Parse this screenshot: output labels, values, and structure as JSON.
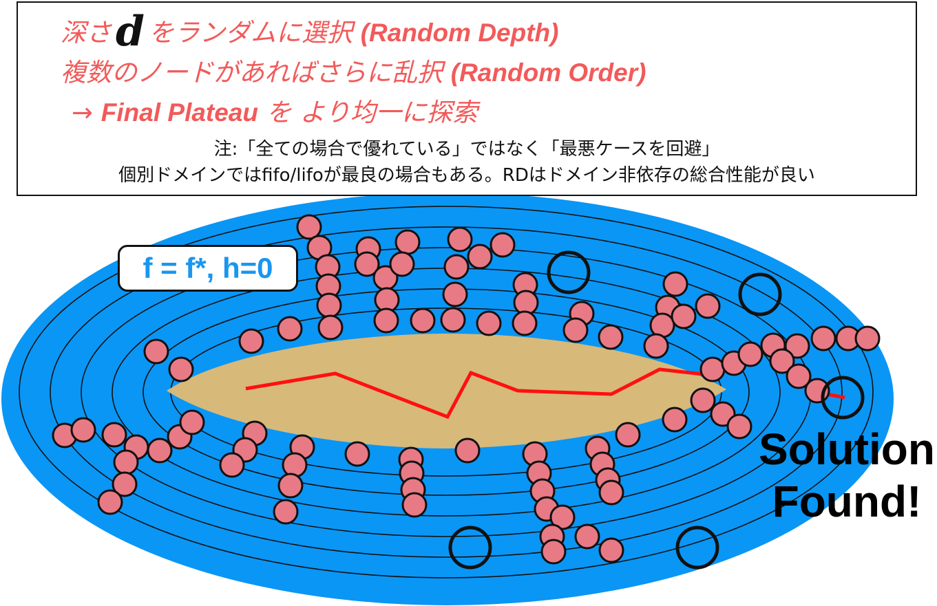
{
  "caption": {
    "line1_prefix": "深さ",
    "line1_var": "d",
    "line1_text": "をランダムに選択",
    "line1_en": "(Random Depth)",
    "line2_text": "複数のノードがあればさらに乱択",
    "line2_en": "(Random Order)",
    "line3_arrow": "→",
    "line3_en": "Final Plateau",
    "line3_text": "を より均一に探索",
    "note1": "注:「全ての場合で優れている」ではなく「最悪ケースを回避」",
    "note2": "個別ドメインではfifo/lifoが最良の場合もある。RDはドメイン非依存の総合性能が良い"
  },
  "plateau_label": "f = f*, h=0",
  "solution_label": [
    "Solution",
    "Found!"
  ],
  "colors": {
    "outer_ellipse": "#0a96f5",
    "inner_plateau": "#d7b97a",
    "node_fill": "#e87a85",
    "path": "#ff1010",
    "caption_red": "#f25a5a",
    "label_blue": "#1996f0"
  }
}
